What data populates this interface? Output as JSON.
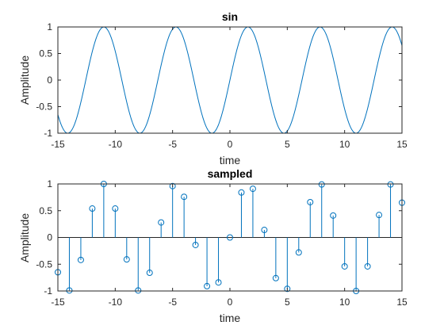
{
  "figure": {
    "background": "#ffffff",
    "line_color": "#0072bd",
    "axis_color": "#262626"
  },
  "chart_data": [
    {
      "type": "line",
      "title": "sin",
      "xlabel": "time",
      "ylabel": "Amplitude",
      "xlim": [
        -15,
        15
      ],
      "ylim": [
        -1,
        1
      ],
      "xticks": [
        -15,
        -10,
        -5,
        0,
        5,
        10,
        15
      ],
      "xtick_labels": [
        "-15",
        "-10",
        "-5",
        "0",
        "5",
        "10",
        "15"
      ],
      "yticks": [
        -1,
        -0.5,
        0,
        0.5,
        1
      ],
      "ytick_labels": [
        "-1",
        "-0.5",
        "0",
        "0.5",
        "1"
      ],
      "function": "sin",
      "grid": false,
      "series": [
        {
          "function": "sin(t)",
          "x_range": [
            -15,
            15
          ]
        }
      ]
    },
    {
      "type": "stem",
      "title": "sampled",
      "xlabel": "time",
      "ylabel": "Amplitude",
      "xlim": [
        -15,
        15
      ],
      "ylim": [
        -1,
        1
      ],
      "xticks": [
        -15,
        -10,
        -5,
        0,
        5,
        10,
        15
      ],
      "xtick_labels": [
        "-15",
        "-10",
        "-5",
        "0",
        "5",
        "10",
        "15"
      ],
      "yticks": [
        -1,
        -0.5,
        0,
        0.5,
        1
      ],
      "ytick_labels": [
        "-1",
        "-0.5",
        "0",
        "0.5",
        "1"
      ],
      "grid": false,
      "x": [
        -15,
        -14,
        -13,
        -12,
        -11,
        -10,
        -9,
        -8,
        -7,
        -6,
        -5,
        -4,
        -3,
        -2,
        -1,
        0,
        1,
        2,
        3,
        4,
        5,
        6,
        7,
        8,
        9,
        10,
        11,
        12,
        13,
        14,
        15
      ],
      "values": [
        -0.65,
        -0.99,
        -0.42,
        0.54,
        1.0,
        0.54,
        -0.41,
        -0.99,
        -0.66,
        0.28,
        0.96,
        0.76,
        -0.14,
        -0.91,
        -0.84,
        0.0,
        0.84,
        0.91,
        0.14,
        -0.76,
        -0.96,
        -0.28,
        0.66,
        0.99,
        0.41,
        -0.54,
        -1.0,
        -0.54,
        0.42,
        0.99,
        0.65
      ]
    }
  ]
}
